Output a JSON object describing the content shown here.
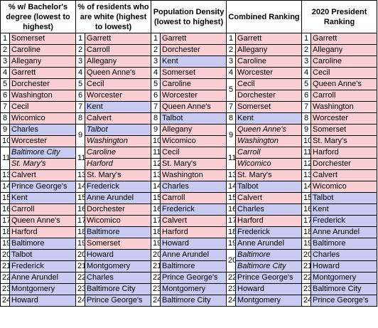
{
  "colors": {
    "red": "#f9cfd4",
    "blue": "#c8caf2"
  },
  "headers": [
    "% w/ Bachelor's degree (lowest to highest)",
    "% of residents who are white (highest to lowest)",
    "Population Density (lowest to highest)",
    "Combined Ranking",
    "2020 President Ranking"
  ],
  "columns": [
    [
      {
        "rank": "1",
        "name": "Somerset",
        "color": "red"
      },
      {
        "rank": "2",
        "name": "Caroline",
        "color": "red"
      },
      {
        "rank": "3",
        "name": "Allegany",
        "color": "red"
      },
      {
        "rank": "4",
        "name": "Garrett",
        "color": "red"
      },
      {
        "rank": "5",
        "name": "Dorchester",
        "color": "red"
      },
      {
        "rank": "6",
        "name": "Washington",
        "color": "red"
      },
      {
        "rank": "7",
        "name": "Cecil",
        "color": "red"
      },
      {
        "rank": "8",
        "name": "Wicomico",
        "color": "red"
      },
      {
        "rank": "9",
        "name": "Charles",
        "color": "blue"
      },
      {
        "rank": "10",
        "name": "Worcester",
        "color": "red"
      },
      {
        "rank": "11",
        "name": "Baltimore City",
        "color": "blue",
        "italic": true,
        "span": 2
      },
      {
        "rank": "",
        "name": "St. Mary's",
        "color": "red",
        "italic": true
      },
      {
        "rank": "13",
        "name": "Calvert",
        "color": "red"
      },
      {
        "rank": "14",
        "name": "Prince George's",
        "color": "blue"
      },
      {
        "rank": "15",
        "name": "Kent",
        "color": "blue"
      },
      {
        "rank": "16",
        "name": "Carroll",
        "color": "red"
      },
      {
        "rank": "17",
        "name": "Queen Anne's",
        "color": "red"
      },
      {
        "rank": "18",
        "name": "Harford",
        "color": "red"
      },
      {
        "rank": "19",
        "name": "Baltimore",
        "color": "blue"
      },
      {
        "rank": "20",
        "name": "Talbot",
        "color": "blue"
      },
      {
        "rank": "21",
        "name": "Frederick",
        "color": "blue"
      },
      {
        "rank": "22",
        "name": "Anne Arundel",
        "color": "blue"
      },
      {
        "rank": "23",
        "name": "Montgomery",
        "color": "blue"
      },
      {
        "rank": "24",
        "name": "Howard",
        "color": "blue"
      }
    ],
    [
      {
        "rank": "1",
        "name": "Garrett",
        "color": "red"
      },
      {
        "rank": "2",
        "name": "Carroll",
        "color": "red"
      },
      {
        "rank": "3",
        "name": "Allegany",
        "color": "red"
      },
      {
        "rank": "4",
        "name": "Queen Anne's",
        "color": "red"
      },
      {
        "rank": "5",
        "name": "Cecil",
        "color": "red"
      },
      {
        "rank": "6",
        "name": "Worcester",
        "color": "red"
      },
      {
        "rank": "7",
        "name": "Kent",
        "color": "blue"
      },
      {
        "rank": "8",
        "name": "Calvert",
        "color": "red"
      },
      {
        "rank": "9",
        "name": "Talbot",
        "color": "blue",
        "italic": true,
        "span": 2
      },
      {
        "rank": "",
        "name": "Washington",
        "color": "red",
        "italic": true
      },
      {
        "rank": "11",
        "name": "Caroline",
        "color": "red",
        "italic": true,
        "span": 2
      },
      {
        "rank": "",
        "name": "Harford",
        "color": "red",
        "italic": true
      },
      {
        "rank": "13",
        "name": "St. Mary's",
        "color": "red"
      },
      {
        "rank": "14",
        "name": "Frederick",
        "color": "blue"
      },
      {
        "rank": "15",
        "name": "Anne Arundel",
        "color": "blue"
      },
      {
        "rank": "16",
        "name": "Dorchester",
        "color": "red"
      },
      {
        "rank": "17",
        "name": "Wicomico",
        "color": "red"
      },
      {
        "rank": "18",
        "name": "Baltimore",
        "color": "blue"
      },
      {
        "rank": "19",
        "name": "Somerset",
        "color": "red"
      },
      {
        "rank": "20",
        "name": "Howard",
        "color": "blue"
      },
      {
        "rank": "21",
        "name": "Montgomery",
        "color": "blue"
      },
      {
        "rank": "22",
        "name": "Charles",
        "color": "blue"
      },
      {
        "rank": "23",
        "name": "Baltimore City",
        "color": "blue"
      },
      {
        "rank": "24",
        "name": "Prince George's",
        "color": "blue"
      }
    ],
    [
      {
        "rank": "1",
        "name": "Garrett",
        "color": "red"
      },
      {
        "rank": "2",
        "name": "Dorchester",
        "color": "red"
      },
      {
        "rank": "3",
        "name": "Kent",
        "color": "blue"
      },
      {
        "rank": "4",
        "name": "Somerset",
        "color": "red"
      },
      {
        "rank": "5",
        "name": "Caroline",
        "color": "red"
      },
      {
        "rank": "6",
        "name": "Worcester",
        "color": "red"
      },
      {
        "rank": "7",
        "name": "Queen Anne's",
        "color": "red"
      },
      {
        "rank": "8",
        "name": "Talbot",
        "color": "blue"
      },
      {
        "rank": "9",
        "name": "Allegany",
        "color": "red"
      },
      {
        "rank": "10",
        "name": "Wicomico",
        "color": "red"
      },
      {
        "rank": "11",
        "name": "Cecil",
        "color": "red"
      },
      {
        "rank": "12",
        "name": "St. Mary's",
        "color": "red"
      },
      {
        "rank": "13",
        "name": "Washington",
        "color": "red"
      },
      {
        "rank": "14",
        "name": "Charles",
        "color": "blue"
      },
      {
        "rank": "15",
        "name": "Carroll",
        "color": "red"
      },
      {
        "rank": "16",
        "name": "Frederick",
        "color": "blue"
      },
      {
        "rank": "17",
        "name": "Calvert",
        "color": "red"
      },
      {
        "rank": "18",
        "name": "Harford",
        "color": "red"
      },
      {
        "rank": "19",
        "name": "Howard",
        "color": "blue"
      },
      {
        "rank": "20",
        "name": "Anne Arundel",
        "color": "blue"
      },
      {
        "rank": "21",
        "name": "Baltimore",
        "color": "blue"
      },
      {
        "rank": "22",
        "name": "Prince George's",
        "color": "blue"
      },
      {
        "rank": "23",
        "name": "Montgomery",
        "color": "blue"
      },
      {
        "rank": "24",
        "name": "Baltimore City",
        "color": "blue"
      }
    ],
    [
      {
        "rank": "1",
        "name": "Garrett",
        "color": "red"
      },
      {
        "rank": "2",
        "name": "Allegany",
        "color": "red"
      },
      {
        "rank": "3",
        "name": "Caroline",
        "color": "red"
      },
      {
        "rank": "4",
        "name": "Worcester",
        "color": "red"
      },
      {
        "rank": "5",
        "name": "Cecil",
        "color": "red",
        "span": 2
      },
      {
        "rank": "",
        "name": "Dorchester",
        "color": "red"
      },
      {
        "rank": "7",
        "name": "Somerset",
        "color": "red"
      },
      {
        "rank": "8",
        "name": "Kent",
        "color": "blue"
      },
      {
        "rank": "9",
        "name": "Queen Anne's",
        "color": "red",
        "italic": true,
        "span": 2
      },
      {
        "rank": "",
        "name": "Washington",
        "color": "red",
        "italic": true
      },
      {
        "rank": "11",
        "name": "Carroll",
        "color": "red",
        "italic": true,
        "span": 2
      },
      {
        "rank": "",
        "name": "Wicomico",
        "color": "red",
        "italic": true
      },
      {
        "rank": "13",
        "name": "St. Mary's",
        "color": "red"
      },
      {
        "rank": "14",
        "name": "Talbot",
        "color": "blue"
      },
      {
        "rank": "15",
        "name": "Calvert",
        "color": "red"
      },
      {
        "rank": "16",
        "name": "Charles",
        "color": "blue"
      },
      {
        "rank": "17",
        "name": "Harford",
        "color": "red"
      },
      {
        "rank": "18",
        "name": "Frederick",
        "color": "blue"
      },
      {
        "rank": "19",
        "name": "Anne Arundel",
        "color": "blue"
      },
      {
        "rank": "20",
        "name": "Baltimore",
        "color": "blue",
        "italic": true,
        "span": 2
      },
      {
        "rank": "",
        "name": "Baltimore City",
        "color": "blue",
        "italic": true
      },
      {
        "rank": "22",
        "name": "Prince George's",
        "color": "blue"
      },
      {
        "rank": "23",
        "name": "Howard",
        "color": "blue"
      },
      {
        "rank": "24",
        "name": "Montgomery",
        "color": "blue"
      }
    ],
    [
      {
        "rank": "1",
        "name": "Garrett",
        "color": "red"
      },
      {
        "rank": "2",
        "name": "Allegany",
        "color": "red"
      },
      {
        "rank": "3",
        "name": "Caroline",
        "color": "red"
      },
      {
        "rank": "4",
        "name": "Cecil",
        "color": "red"
      },
      {
        "rank": "5",
        "name": "Queen Anne's",
        "color": "red"
      },
      {
        "rank": "6",
        "name": "Carroll",
        "color": "red"
      },
      {
        "rank": "7",
        "name": "Washington",
        "color": "red"
      },
      {
        "rank": "8",
        "name": "Worcester",
        "color": "red"
      },
      {
        "rank": "9",
        "name": "Somerset",
        "color": "red"
      },
      {
        "rank": "10",
        "name": "St. Mary's",
        "color": "red"
      },
      {
        "rank": "11",
        "name": "Harford",
        "color": "red"
      },
      {
        "rank": "12",
        "name": "Dorchester",
        "color": "red"
      },
      {
        "rank": "13",
        "name": "Calvert",
        "color": "red"
      },
      {
        "rank": "14",
        "name": "Wicomico",
        "color": "red"
      },
      {
        "rank": "15",
        "name": "Talbot",
        "color": "blue"
      },
      {
        "rank": "16",
        "name": "Kent",
        "color": "blue"
      },
      {
        "rank": "17",
        "name": "Frederick",
        "color": "blue"
      },
      {
        "rank": "18",
        "name": "Anne Arundel",
        "color": "blue"
      },
      {
        "rank": "19",
        "name": "Baltimore",
        "color": "blue"
      },
      {
        "rank": "20",
        "name": "Charles",
        "color": "blue"
      },
      {
        "rank": "21",
        "name": "Howard",
        "color": "blue"
      },
      {
        "rank": "22",
        "name": "Montgomery",
        "color": "blue"
      },
      {
        "rank": "23",
        "name": "Baltimore City",
        "color": "blue"
      },
      {
        "rank": "24",
        "name": "Prince George's",
        "color": "blue"
      }
    ]
  ]
}
